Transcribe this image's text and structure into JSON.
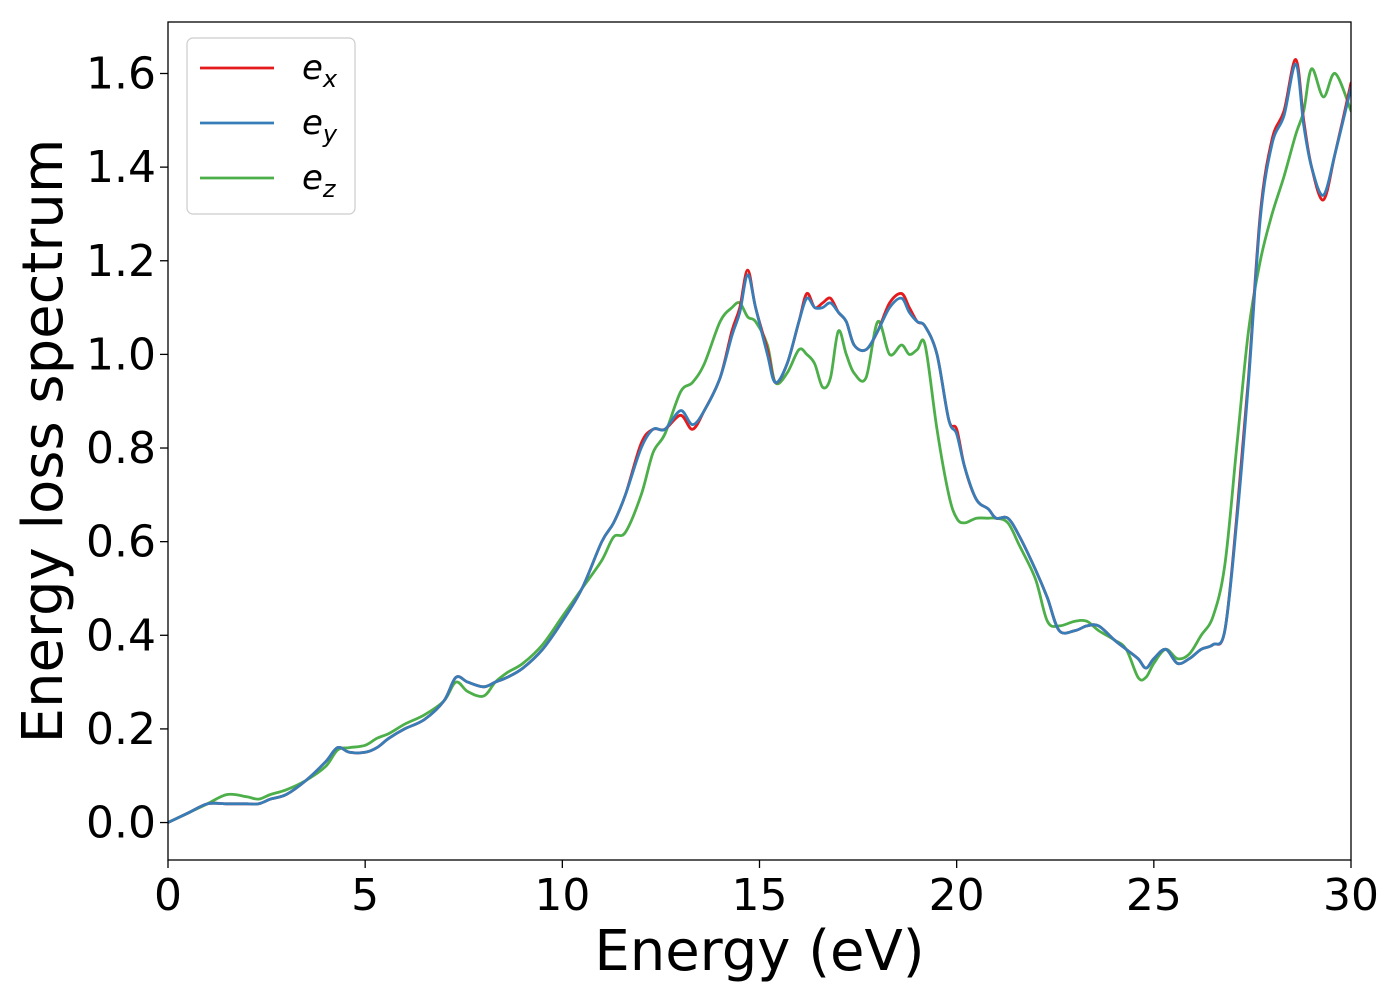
{
  "chart_data": {
    "type": "line",
    "title": "",
    "xlabel": "Energy (eV)",
    "ylabel": "Energy loss spectrum",
    "xlim": [
      0,
      30
    ],
    "ylim": [
      -0.08,
      1.71
    ],
    "xticks": [
      0,
      5,
      10,
      15,
      20,
      25,
      30
    ],
    "xtick_labels": [
      "0",
      "5",
      "10",
      "15",
      "20",
      "25",
      "30"
    ],
    "yticks": [
      0.0,
      0.2,
      0.4,
      0.6,
      0.8,
      1.0,
      1.2,
      1.4,
      1.6
    ],
    "ytick_labels": [
      "0.0",
      "0.2",
      "0.4",
      "0.6",
      "0.8",
      "1.0",
      "1.2",
      "1.4",
      "1.6"
    ],
    "grid": false,
    "legend_position": "top-left",
    "series": [
      {
        "name": "e_x",
        "label_base": "e",
        "label_sub": "x",
        "color": "#e41a1c",
        "x": [
          0,
          0.5,
          1,
          1.5,
          2,
          2.3,
          2.6,
          3,
          3.5,
          4,
          4.3,
          4.6,
          5,
          5.3,
          5.6,
          6,
          6.5,
          7,
          7.3,
          7.6,
          8,
          8.3,
          8.6,
          9,
          9.5,
          10,
          10.5,
          11,
          11.3,
          11.6,
          12,
          12.3,
          12.6,
          13,
          13.3,
          13.6,
          14,
          14.3,
          14.5,
          14.7,
          14.9,
          15.2,
          15.4,
          15.7,
          16,
          16.2,
          16.4,
          16.6,
          16.8,
          17,
          17.2,
          17.4,
          17.7,
          18,
          18.3,
          18.6,
          18.8,
          19,
          19.2,
          19.5,
          19.8,
          20,
          20.2,
          20.5,
          20.8,
          21,
          21.3,
          21.6,
          22,
          22.3,
          22.6,
          23,
          23.3,
          23.6,
          24,
          24.3,
          24.6,
          24.8,
          25,
          25.3,
          25.6,
          25.9,
          26.2,
          26.5,
          26.8,
          27.1,
          27.4,
          27.7,
          28,
          28.3,
          28.6,
          28.8,
          29,
          29.3,
          29.6,
          30
        ],
        "y": [
          0.0,
          0.02,
          0.04,
          0.04,
          0.04,
          0.04,
          0.05,
          0.06,
          0.09,
          0.13,
          0.16,
          0.15,
          0.15,
          0.16,
          0.18,
          0.2,
          0.22,
          0.26,
          0.31,
          0.3,
          0.29,
          0.3,
          0.31,
          0.33,
          0.37,
          0.43,
          0.5,
          0.6,
          0.64,
          0.7,
          0.81,
          0.84,
          0.84,
          0.87,
          0.84,
          0.88,
          0.95,
          1.05,
          1.1,
          1.18,
          1.1,
          1.01,
          0.94,
          0.98,
          1.07,
          1.13,
          1.1,
          1.11,
          1.12,
          1.09,
          1.07,
          1.02,
          1.01,
          1.05,
          1.11,
          1.13,
          1.1,
          1.07,
          1.06,
          1.0,
          0.86,
          0.84,
          0.76,
          0.69,
          0.67,
          0.65,
          0.65,
          0.61,
          0.54,
          0.48,
          0.41,
          0.41,
          0.42,
          0.42,
          0.39,
          0.37,
          0.35,
          0.33,
          0.35,
          0.37,
          0.34,
          0.35,
          0.37,
          0.38,
          0.41,
          0.65,
          0.95,
          1.3,
          1.46,
          1.52,
          1.63,
          1.5,
          1.4,
          1.33,
          1.43,
          1.58
        ]
      },
      {
        "name": "e_y",
        "label_base": "e",
        "label_sub": "y",
        "color": "#377eb8",
        "x": [
          0,
          0.5,
          1,
          1.5,
          2,
          2.3,
          2.6,
          3,
          3.5,
          4,
          4.3,
          4.6,
          5,
          5.3,
          5.6,
          6,
          6.5,
          7,
          7.3,
          7.6,
          8,
          8.3,
          8.6,
          9,
          9.5,
          10,
          10.5,
          11,
          11.3,
          11.6,
          12,
          12.3,
          12.6,
          13,
          13.3,
          13.6,
          14,
          14.3,
          14.5,
          14.7,
          14.9,
          15.2,
          15.4,
          15.7,
          16,
          16.2,
          16.4,
          16.6,
          16.8,
          17,
          17.2,
          17.4,
          17.7,
          18,
          18.3,
          18.6,
          18.8,
          19,
          19.2,
          19.5,
          19.8,
          20,
          20.2,
          20.5,
          20.8,
          21,
          21.3,
          21.6,
          22,
          22.3,
          22.6,
          23,
          23.3,
          23.6,
          24,
          24.3,
          24.6,
          24.8,
          25,
          25.3,
          25.6,
          25.9,
          26.2,
          26.5,
          26.8,
          27.1,
          27.4,
          27.7,
          28,
          28.3,
          28.6,
          28.8,
          29,
          29.3,
          29.6,
          30
        ],
        "y": [
          0.0,
          0.02,
          0.04,
          0.04,
          0.04,
          0.04,
          0.05,
          0.06,
          0.09,
          0.13,
          0.16,
          0.15,
          0.15,
          0.16,
          0.18,
          0.2,
          0.22,
          0.26,
          0.31,
          0.3,
          0.29,
          0.3,
          0.31,
          0.33,
          0.37,
          0.43,
          0.5,
          0.6,
          0.64,
          0.7,
          0.8,
          0.84,
          0.84,
          0.88,
          0.85,
          0.88,
          0.95,
          1.04,
          1.09,
          1.17,
          1.1,
          1.0,
          0.94,
          0.98,
          1.07,
          1.12,
          1.1,
          1.1,
          1.11,
          1.09,
          1.07,
          1.02,
          1.01,
          1.05,
          1.1,
          1.12,
          1.09,
          1.07,
          1.06,
          1.0,
          0.86,
          0.83,
          0.76,
          0.69,
          0.67,
          0.65,
          0.65,
          0.61,
          0.54,
          0.48,
          0.41,
          0.41,
          0.42,
          0.42,
          0.39,
          0.37,
          0.35,
          0.33,
          0.35,
          0.37,
          0.34,
          0.35,
          0.37,
          0.38,
          0.41,
          0.64,
          0.94,
          1.29,
          1.45,
          1.51,
          1.62,
          1.49,
          1.4,
          1.34,
          1.43,
          1.57
        ]
      },
      {
        "name": "e_z",
        "label_base": "e",
        "label_sub": "z",
        "color": "#4daf4a",
        "x": [
          0,
          0.5,
          1,
          1.5,
          2,
          2.3,
          2.6,
          3,
          3.5,
          4,
          4.3,
          4.6,
          5,
          5.3,
          5.6,
          6,
          6.5,
          7,
          7.3,
          7.6,
          8,
          8.3,
          8.6,
          9,
          9.5,
          10,
          10.5,
          11,
          11.3,
          11.6,
          12,
          12.3,
          12.6,
          13,
          13.3,
          13.6,
          14,
          14.3,
          14.5,
          14.7,
          14.9,
          15.2,
          15.4,
          15.7,
          16,
          16.2,
          16.4,
          16.6,
          16.8,
          17,
          17.2,
          17.4,
          17.7,
          18,
          18.3,
          18.6,
          18.8,
          19,
          19.2,
          19.5,
          19.8,
          20,
          20.2,
          20.5,
          20.8,
          21,
          21.3,
          21.6,
          22,
          22.3,
          22.6,
          23,
          23.3,
          23.6,
          24,
          24.3,
          24.6,
          24.8,
          25,
          25.3,
          25.6,
          25.9,
          26.2,
          26.5,
          26.8,
          27.1,
          27.4,
          27.7,
          28,
          28.3,
          28.6,
          28.8,
          29,
          29.3,
          29.6,
          30
        ],
        "y": [
          0.0,
          0.02,
          0.04,
          0.06,
          0.055,
          0.05,
          0.06,
          0.07,
          0.09,
          0.12,
          0.155,
          0.16,
          0.165,
          0.18,
          0.19,
          0.21,
          0.23,
          0.26,
          0.3,
          0.28,
          0.27,
          0.3,
          0.32,
          0.34,
          0.38,
          0.44,
          0.5,
          0.56,
          0.61,
          0.62,
          0.7,
          0.79,
          0.83,
          0.92,
          0.94,
          0.98,
          1.07,
          1.1,
          1.11,
          1.08,
          1.07,
          1.02,
          0.94,
          0.96,
          1.01,
          1.0,
          0.98,
          0.93,
          0.95,
          1.05,
          1.0,
          0.96,
          0.95,
          1.07,
          1.0,
          1.02,
          1.0,
          1.01,
          1.02,
          0.84,
          0.7,
          0.65,
          0.64,
          0.65,
          0.65,
          0.65,
          0.64,
          0.59,
          0.52,
          0.43,
          0.42,
          0.43,
          0.43,
          0.41,
          0.39,
          0.37,
          0.31,
          0.31,
          0.34,
          0.37,
          0.35,
          0.36,
          0.4,
          0.44,
          0.55,
          0.8,
          1.05,
          1.2,
          1.3,
          1.38,
          1.47,
          1.52,
          1.61,
          1.55,
          1.6,
          1.52
        ]
      }
    ]
  }
}
